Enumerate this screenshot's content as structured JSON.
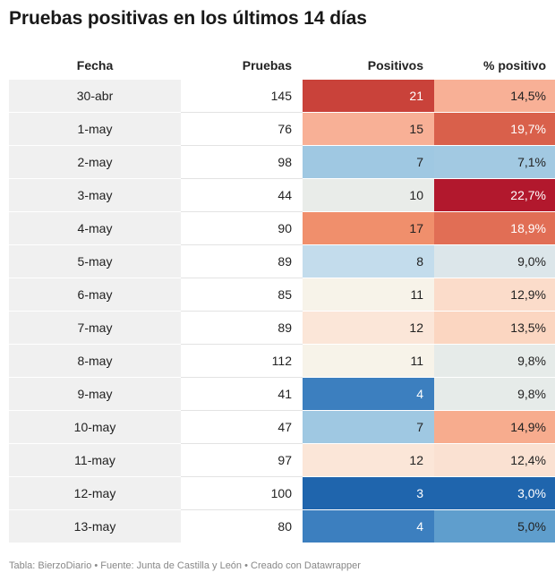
{
  "title": "Pruebas positivas en los últimos 14 días",
  "footer": "Tabla: BierzoDiario • Fuente: Junta de Castilla y León • Creado con Datawrapper",
  "chart_data": {
    "type": "table",
    "columns": [
      "Fecha",
      "Pruebas",
      "Positivos",
      "% positivo"
    ],
    "rows": [
      {
        "fecha": "30-abr",
        "pruebas": "145",
        "positivos": "21",
        "pct": "14,5%",
        "pos_color": "#c9423a",
        "pct_color": "#f8b096"
      },
      {
        "fecha": "1-may",
        "pruebas": "76",
        "positivos": "15",
        "pct": "19,7%",
        "pos_color": "#f8b096",
        "pct_color": "#d9604b"
      },
      {
        "fecha": "2-may",
        "pruebas": "98",
        "positivos": "7",
        "pct": "7,1%",
        "pos_color": "#9fc8e2",
        "pct_color": "#a2c9e2"
      },
      {
        "fecha": "3-may",
        "pruebas": "44",
        "positivos": "10",
        "pct": "22,7%",
        "pos_color": "#e9ece9",
        "pct_color": "#b2182d"
      },
      {
        "fecha": "4-may",
        "pruebas": "90",
        "positivos": "17",
        "pct": "18,9%",
        "pos_color": "#f08f6c",
        "pct_color": "#e16e55"
      },
      {
        "fecha": "5-may",
        "pruebas": "89",
        "positivos": "8",
        "pct": "9,0%",
        "pos_color": "#c3dcec",
        "pct_color": "#dce6ea"
      },
      {
        "fecha": "6-may",
        "pruebas": "85",
        "positivos": "11",
        "pct": "12,9%",
        "pos_color": "#f7f3e9",
        "pct_color": "#fbdcca"
      },
      {
        "fecha": "7-may",
        "pruebas": "89",
        "positivos": "12",
        "pct": "13,5%",
        "pos_color": "#fbe6d8",
        "pct_color": "#fbd6c1"
      },
      {
        "fecha": "8-may",
        "pruebas": "112",
        "positivos": "11",
        "pct": "9,8%",
        "pos_color": "#f7f3e9",
        "pct_color": "#e6ebe9"
      },
      {
        "fecha": "9-may",
        "pruebas": "41",
        "positivos": "4",
        "pct": "9,8%",
        "pos_color": "#3c7fbf",
        "pct_color": "#e6ebe9"
      },
      {
        "fecha": "10-may",
        "pruebas": "47",
        "positivos": "7",
        "pct": "14,9%",
        "pos_color": "#9fc8e2",
        "pct_color": "#f7ac8e"
      },
      {
        "fecha": "11-may",
        "pruebas": "97",
        "positivos": "12",
        "pct": "12,4%",
        "pos_color": "#fbe6d8",
        "pct_color": "#fae1d2"
      },
      {
        "fecha": "12-may",
        "pruebas": "100",
        "positivos": "3",
        "pct": "3,0%",
        "pos_color": "#1f65ad",
        "pct_color": "#1f65ad"
      },
      {
        "fecha": "13-may",
        "pruebas": "80",
        "positivos": "4",
        "pct": "5,0%",
        "pos_color": "#3c7fbf",
        "pct_color": "#5f9ecd"
      }
    ]
  }
}
